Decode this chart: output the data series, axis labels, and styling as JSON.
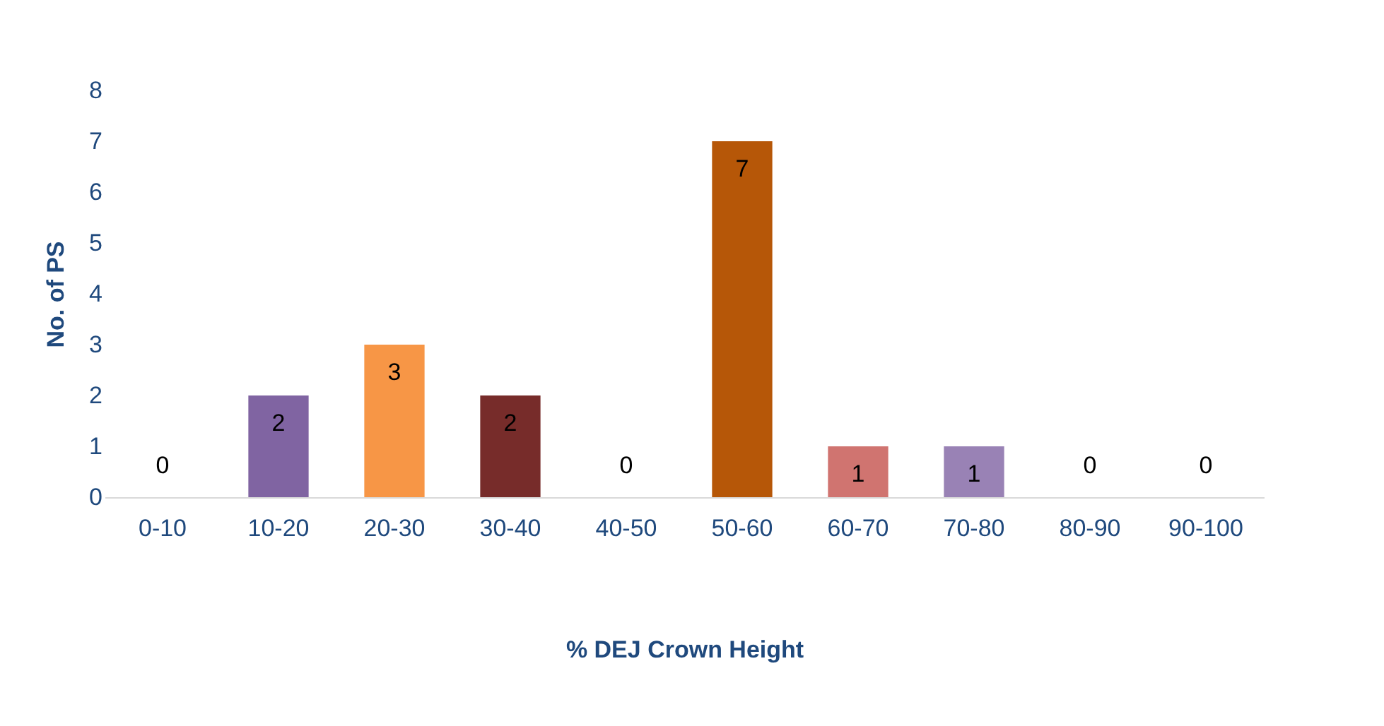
{
  "chart_data": {
    "type": "bar",
    "xlabel": "% DEJ Crown Height",
    "ylabel": "No. of PS",
    "categories": [
      "0-10",
      "10-20",
      "20-30",
      "30-40",
      "40-50",
      "50-60",
      "60-70",
      "70-80",
      "80-90",
      "90-100"
    ],
    "values": [
      0,
      2,
      3,
      2,
      0,
      7,
      1,
      1,
      0,
      0
    ],
    "colors": [
      "#4f81bd",
      "#8064a2",
      "#f79646",
      "#772c2a",
      "#4bacc6",
      "#b65708",
      "#d07470",
      "#9982b5",
      "#4f81bd",
      "#8064a2"
    ],
    "ylim": [
      0,
      8
    ],
    "yticks": [
      0,
      1,
      2,
      3,
      4,
      5,
      6,
      7,
      8
    ],
    "grid": false,
    "data_labels": true
  }
}
